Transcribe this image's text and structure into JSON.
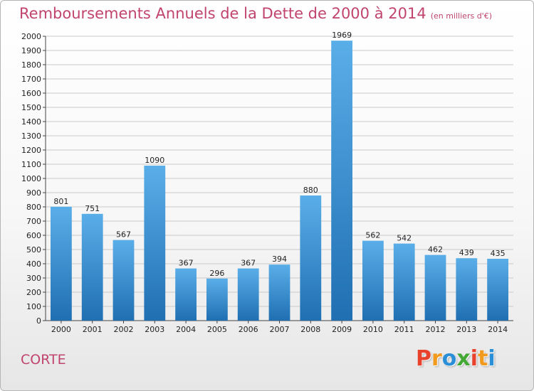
{
  "title": "Remboursements Annuels de la Dette de 2000 à 2014",
  "unit": "(en milliers d'€)",
  "city": "CORTE",
  "logo_text": "Proxiti",
  "chart_data": {
    "type": "bar",
    "categories": [
      "2000",
      "2001",
      "2002",
      "2003",
      "2004",
      "2005",
      "2006",
      "2007",
      "2008",
      "2009",
      "2010",
      "2011",
      "2012",
      "2013",
      "2014"
    ],
    "values": [
      801,
      751,
      567,
      1090,
      367,
      296,
      367,
      394,
      880,
      1969,
      562,
      542,
      462,
      439,
      435
    ],
    "ylim": [
      0,
      2000
    ],
    "ytick_step": 100,
    "yticks": [
      "0",
      "100",
      "200",
      "300",
      "400",
      "500",
      "600",
      "700",
      "800",
      "900",
      "1000",
      "1100",
      "1200",
      "1300",
      "1400",
      "1500",
      "1600",
      "1700",
      "1800",
      "1900",
      "2000"
    ],
    "grid": true,
    "bar_color_top": "#5aaee8",
    "bar_color_bottom": "#1f6fb2"
  },
  "colors": {
    "title": "#c0446c",
    "logo": [
      "#e8412c",
      "#f29a1e",
      "#2a8fd6",
      "#44a934",
      "#e8412c",
      "#f29a1e",
      "#2a8fd6"
    ]
  }
}
